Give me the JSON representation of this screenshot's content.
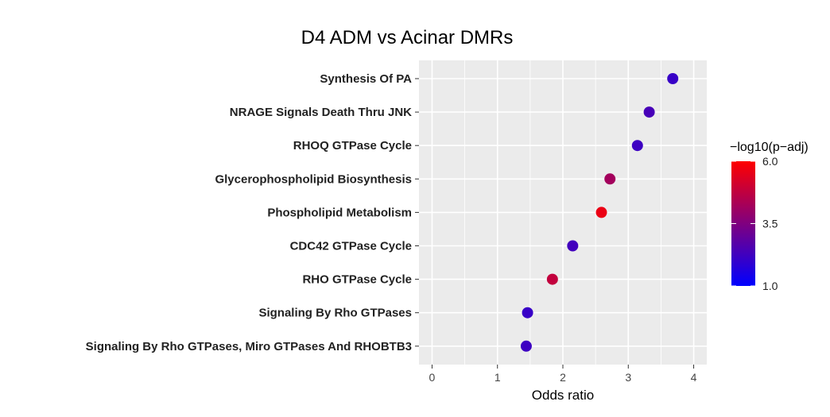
{
  "chart_data": {
    "type": "scatter",
    "title": "D4 ADM vs Acinar DMRs",
    "xlabel": "Odds ratio",
    "ylabel": "",
    "xlim": [
      -0.2,
      4.2
    ],
    "xticks": [
      0,
      1,
      2,
      3,
      4
    ],
    "grid": true,
    "categories": [
      "Synthesis Of PA",
      "NRAGE Signals Death Thru JNK",
      "RHOQ GTPase Cycle",
      "Glycerophospholipid Biosynthesis",
      "Phospholipid Metabolism",
      "CDC42 GTPase Cycle",
      "RHO GTPase Cycle",
      "Signaling By Rho GTPases",
      "Signaling By Rho GTPases, Miro GTPases And RHOBTB3"
    ],
    "points": [
      {
        "category": "Synthesis Of PA",
        "odds_ratio": 3.68,
        "neg_log10_padj": 2.1
      },
      {
        "category": "NRAGE Signals Death Thru JNK",
        "odds_ratio": 3.32,
        "neg_log10_padj": 2.4
      },
      {
        "category": "RHOQ GTPase Cycle",
        "odds_ratio": 3.14,
        "neg_log10_padj": 2.2
      },
      {
        "category": "Glycerophospholipid Biosynthesis",
        "odds_ratio": 2.72,
        "neg_log10_padj": 4.2
      },
      {
        "category": "Phospholipid Metabolism",
        "odds_ratio": 2.59,
        "neg_log10_padj": 5.6
      },
      {
        "category": "CDC42 GTPase Cycle",
        "odds_ratio": 2.15,
        "neg_log10_padj": 2.3
      },
      {
        "category": "RHO GTPase Cycle",
        "odds_ratio": 1.84,
        "neg_log10_padj": 4.8
      },
      {
        "category": "Signaling By Rho GTPases",
        "odds_ratio": 1.46,
        "neg_log10_padj": 2.1
      },
      {
        "category": "Signaling By Rho GTPases, Miro GTPases And RHOBTB3",
        "odds_ratio": 1.44,
        "neg_log10_padj": 2.2
      }
    ],
    "color_scale": {
      "title": "−log10(p−adj)",
      "min": 1.0,
      "max": 6.0,
      "low_color": "#0000ff",
      "high_color": "#ff0000",
      "tick_labels": [
        "6.0",
        "3.5",
        "1.0"
      ],
      "tick_values": [
        6.0,
        3.5,
        1.0
      ],
      "legend_position": "right"
    },
    "colors": {
      "panel_background": "#ebebeb",
      "grid": "#ffffff"
    }
  }
}
